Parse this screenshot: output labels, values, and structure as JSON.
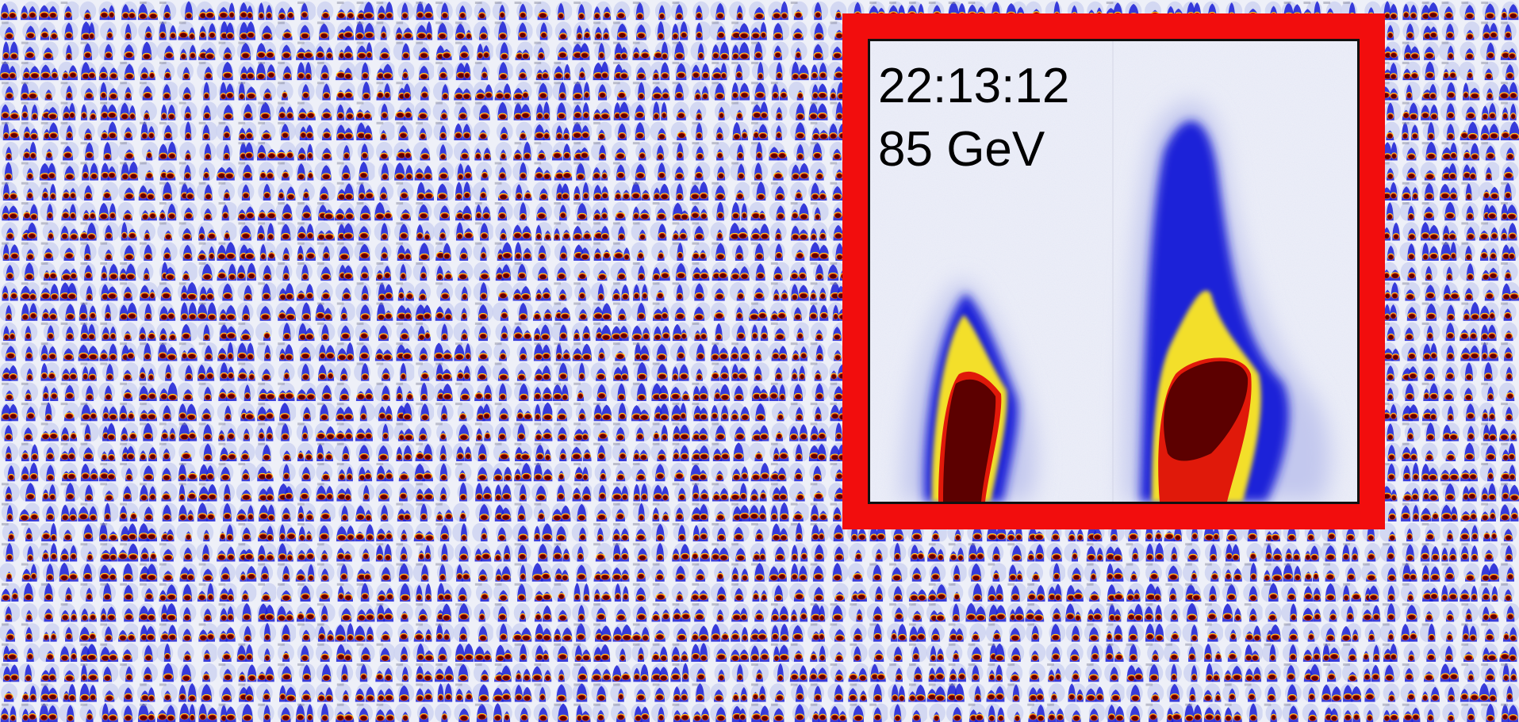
{
  "highlight": {
    "time": "22:13:12",
    "energy": "85 GeV"
  },
  "colors": {
    "frame": "#f20d0d",
    "background": "#ecedf6",
    "halo": "#c8cdf0",
    "blue": "#1a1fd6",
    "yellow": "#f5e22a",
    "red": "#e01a0a",
    "core": "#5c0000"
  },
  "mosaic": {
    "tile_count_x": 77,
    "tile_count_y": 36
  }
}
